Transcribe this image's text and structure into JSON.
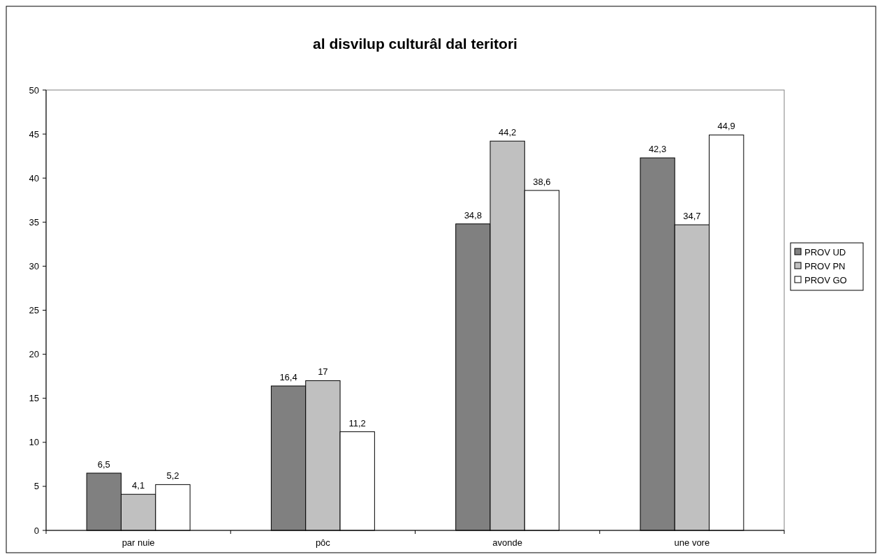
{
  "chart_data": {
    "type": "bar",
    "title": "al disvilup culturâl dal teritori",
    "categories": [
      "par nuie",
      "pôc",
      "avonde",
      "une vore"
    ],
    "series": [
      {
        "name": "PROV UD",
        "color": "#808080",
        "values": [
          6.5,
          16.4,
          34.8,
          42.3
        ],
        "value_labels": [
          "6,5",
          "16,4",
          "34,8",
          "42,3"
        ]
      },
      {
        "name": "PROV PN",
        "color": "#c0c0c0",
        "values": [
          4.1,
          17,
          44.2,
          34.7
        ],
        "value_labels": [
          "4,1",
          "17",
          "44,2",
          "34,7"
        ]
      },
      {
        "name": "PROV GO",
        "color": "#ffffff",
        "values": [
          5.2,
          11.2,
          38.6,
          44.9
        ],
        "value_labels": [
          "5,2",
          "11,2",
          "38,6",
          "44,9"
        ]
      }
    ],
    "ylim": [
      0,
      50
    ],
    "yticks": [
      0,
      5,
      10,
      15,
      20,
      25,
      30,
      35,
      40,
      45,
      50
    ],
    "grid": false,
    "legend": "right"
  }
}
